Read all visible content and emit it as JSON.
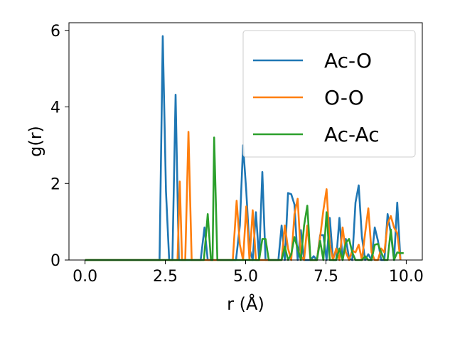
{
  "chart_data": {
    "type": "line",
    "xlabel": "r (Å)",
    "ylabel": "g(r)",
    "xlim": [
      -0.5,
      10.5
    ],
    "ylim": [
      0,
      6.2
    ],
    "xticks": [
      0.0,
      2.5,
      5.0,
      7.5,
      10.0
    ],
    "xtick_labels": [
      "0.0",
      "2.5",
      "5.0",
      "7.5",
      "10.0"
    ],
    "yticks": [
      0,
      2,
      4,
      6
    ],
    "ytick_labels": [
      "0",
      "2",
      "4",
      "6"
    ],
    "grid": false,
    "legend_position": "top-right",
    "series": [
      {
        "name": "Ac-O",
        "color": "#1f77b4",
        "points": [
          [
            0.0,
            0
          ],
          [
            2.25,
            0
          ],
          [
            2.32,
            0
          ],
          [
            2.42,
            5.85
          ],
          [
            2.52,
            1.8
          ],
          [
            2.62,
            0
          ],
          [
            2.72,
            0
          ],
          [
            2.82,
            4.32
          ],
          [
            2.92,
            0
          ],
          [
            3.6,
            0
          ],
          [
            3.72,
            0.85
          ],
          [
            3.82,
            0
          ],
          [
            4.7,
            0
          ],
          [
            4.82,
            0.9
          ],
          [
            4.92,
            3.0
          ],
          [
            5.02,
            1.8
          ],
          [
            5.12,
            0.3
          ],
          [
            5.22,
            0
          ],
          [
            5.32,
            1.25
          ],
          [
            5.42,
            0
          ],
          [
            5.52,
            2.3
          ],
          [
            5.62,
            0
          ],
          [
            6.02,
            0
          ],
          [
            6.12,
            0.9
          ],
          [
            6.22,
            0
          ],
          [
            6.32,
            1.75
          ],
          [
            6.42,
            1.72
          ],
          [
            6.52,
            1.45
          ],
          [
            6.62,
            0
          ],
          [
            6.72,
            0.78
          ],
          [
            6.82,
            0
          ],
          [
            7.02,
            0
          ],
          [
            7.12,
            0.1
          ],
          [
            7.22,
            0
          ],
          [
            7.32,
            0.65
          ],
          [
            7.42,
            0.65
          ],
          [
            7.52,
            0
          ],
          [
            7.62,
            1.1
          ],
          [
            7.72,
            0
          ],
          [
            7.82,
            0
          ],
          [
            7.92,
            1.1
          ],
          [
            8.02,
            0
          ],
          [
            8.12,
            0.55
          ],
          [
            8.22,
            0.05
          ],
          [
            8.32,
            0
          ],
          [
            8.42,
            1.5
          ],
          [
            8.52,
            1.95
          ],
          [
            8.62,
            0.6
          ],
          [
            8.72,
            0
          ],
          [
            8.82,
            0.15
          ],
          [
            8.92,
            0
          ],
          [
            9.02,
            0.85
          ],
          [
            9.12,
            0.5
          ],
          [
            9.22,
            0
          ],
          [
            9.32,
            0
          ],
          [
            9.42,
            1.2
          ],
          [
            9.52,
            0.7
          ],
          [
            9.62,
            0
          ],
          [
            9.72,
            1.5
          ],
          [
            9.82,
            0
          ]
        ]
      },
      {
        "name": "O-O",
        "color": "#ff7f0e",
        "points": [
          [
            0.0,
            0
          ],
          [
            2.8,
            0
          ],
          [
            2.88,
            0
          ],
          [
            2.95,
            2.05
          ],
          [
            3.02,
            0
          ],
          [
            3.12,
            0
          ],
          [
            3.22,
            3.35
          ],
          [
            3.32,
            0
          ],
          [
            4.6,
            0
          ],
          [
            4.72,
            1.55
          ],
          [
            4.82,
            0.4
          ],
          [
            4.92,
            0
          ],
          [
            5.02,
            1.4
          ],
          [
            5.12,
            0
          ],
          [
            5.22,
            1.3
          ],
          [
            5.32,
            0
          ],
          [
            6.12,
            0
          ],
          [
            6.22,
            0.9
          ],
          [
            6.32,
            0.3
          ],
          [
            6.42,
            0
          ],
          [
            6.52,
            1.2
          ],
          [
            6.62,
            1.6
          ],
          [
            6.72,
            0.1
          ],
          [
            6.82,
            0
          ],
          [
            6.92,
            0.9
          ],
          [
            7.02,
            0
          ],
          [
            7.22,
            0
          ],
          [
            7.32,
            0.6
          ],
          [
            7.42,
            1.3
          ],
          [
            7.52,
            1.85
          ],
          [
            7.62,
            0.4
          ],
          [
            7.72,
            0
          ],
          [
            7.82,
            0.3
          ],
          [
            7.92,
            0
          ],
          [
            8.02,
            0.85
          ],
          [
            8.12,
            0.2
          ],
          [
            8.22,
            0
          ],
          [
            8.32,
            0.25
          ],
          [
            8.42,
            0.2
          ],
          [
            8.52,
            0.4
          ],
          [
            8.62,
            0
          ],
          [
            8.72,
            0.7
          ],
          [
            8.82,
            1.35
          ],
          [
            8.92,
            0.2
          ],
          [
            9.02,
            0
          ],
          [
            9.12,
            0
          ],
          [
            9.22,
            0.3
          ],
          [
            9.32,
            0.2
          ],
          [
            9.42,
            0.95
          ],
          [
            9.52,
            1.15
          ],
          [
            9.62,
            0.85
          ],
          [
            9.72,
            0.7
          ],
          [
            9.82,
            0
          ]
        ]
      },
      {
        "name": "Ac-Ac",
        "color": "#2ca02c",
        "points": [
          [
            0.0,
            0
          ],
          [
            3.7,
            0
          ],
          [
            3.82,
            1.2
          ],
          [
            3.92,
            0
          ],
          [
            3.97,
            0
          ],
          [
            4.02,
            3.2
          ],
          [
            4.12,
            0
          ],
          [
            5.42,
            0
          ],
          [
            5.52,
            0.55
          ],
          [
            5.62,
            0.55
          ],
          [
            5.72,
            0
          ],
          [
            6.12,
            0
          ],
          [
            6.22,
            0.35
          ],
          [
            6.32,
            0
          ],
          [
            6.42,
            0.15
          ],
          [
            6.52,
            0.6
          ],
          [
            6.62,
            0.3
          ],
          [
            6.72,
            0
          ],
          [
            6.82,
            0.9
          ],
          [
            6.92,
            1.42
          ],
          [
            7.02,
            0
          ],
          [
            7.22,
            0
          ],
          [
            7.32,
            0.5
          ],
          [
            7.42,
            0
          ],
          [
            7.52,
            1.25
          ],
          [
            7.62,
            0
          ],
          [
            7.82,
            0
          ],
          [
            7.92,
            0.3
          ],
          [
            8.02,
            0
          ],
          [
            8.12,
            0.45
          ],
          [
            8.22,
            0.55
          ],
          [
            8.32,
            0.2
          ],
          [
            8.42,
            0
          ],
          [
            8.62,
            0
          ],
          [
            8.72,
            0.1
          ],
          [
            8.82,
            0
          ],
          [
            8.92,
            0
          ],
          [
            9.02,
            0.4
          ],
          [
            9.12,
            0.42
          ],
          [
            9.22,
            0.2
          ],
          [
            9.32,
            0
          ],
          [
            9.42,
            0
          ],
          [
            9.52,
            0.8
          ],
          [
            9.62,
            0
          ],
          [
            9.72,
            0.2
          ],
          [
            9.82,
            0.18
          ],
          [
            9.92,
            0.18
          ]
        ]
      }
    ]
  }
}
